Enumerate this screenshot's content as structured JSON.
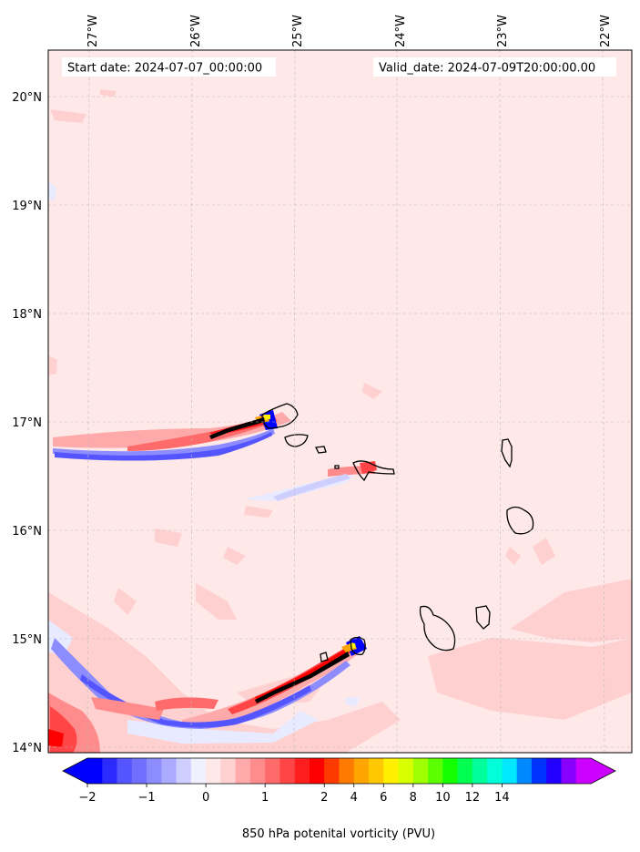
{
  "header": {
    "start_date": "Start date: 2024-07-07_00:00:00",
    "valid_date": "Valid_date: 2024-07-09T20:00:00.00"
  },
  "axes": {
    "lon_labels": [
      "27°W",
      "26°W",
      "25°W",
      "24°W",
      "23°W",
      "22°W"
    ],
    "lat_labels": [
      "20°N",
      "19°N",
      "18°N",
      "17°N",
      "16°N",
      "15°N",
      "14°N"
    ]
  },
  "colorbar": {
    "label": "850 hPa potenital vorticity (PVU)",
    "tick_labels": [
      "−2",
      "−1",
      "0",
      "1",
      "2",
      "4",
      "6",
      "8",
      "10",
      "12",
      "14"
    ],
    "colors": [
      "#0000ff",
      "#2b2bff",
      "#5555ff",
      "#7070ff",
      "#8c8cff",
      "#aaaaff",
      "#cfcfff",
      "#f0f0ff",
      "#ffe8e8",
      "#ffd0d0",
      "#ffaaaa",
      "#ff8c8c",
      "#ff6a6a",
      "#ff4545",
      "#ff1e1e",
      "#ff0000",
      "#ff3a00",
      "#ff7a00",
      "#ffa500",
      "#ffc800",
      "#fff000",
      "#d8ff00",
      "#a0ff00",
      "#5cff00",
      "#14ff00",
      "#00ff50",
      "#00ff9c",
      "#00ffd8",
      "#00e8ff",
      "#0088ff",
      "#0033ff",
      "#2200ff",
      "#8800ff",
      "#cc00ff"
    ],
    "extend_low_color": "#0000ff",
    "extend_high_color": "#cc00ff"
  },
  "map_colors": {
    "background": "#ffe8e8",
    "light_positive": "#ffd0d0",
    "positive": "#ff8c8c",
    "strong_positive": "#ff2a2a",
    "light_negative": "#e8eaff",
    "negative": "#8c8cff",
    "strong_negative": "#2b2bff",
    "coast": "#000000",
    "grid": "#bbbbbb"
  }
}
